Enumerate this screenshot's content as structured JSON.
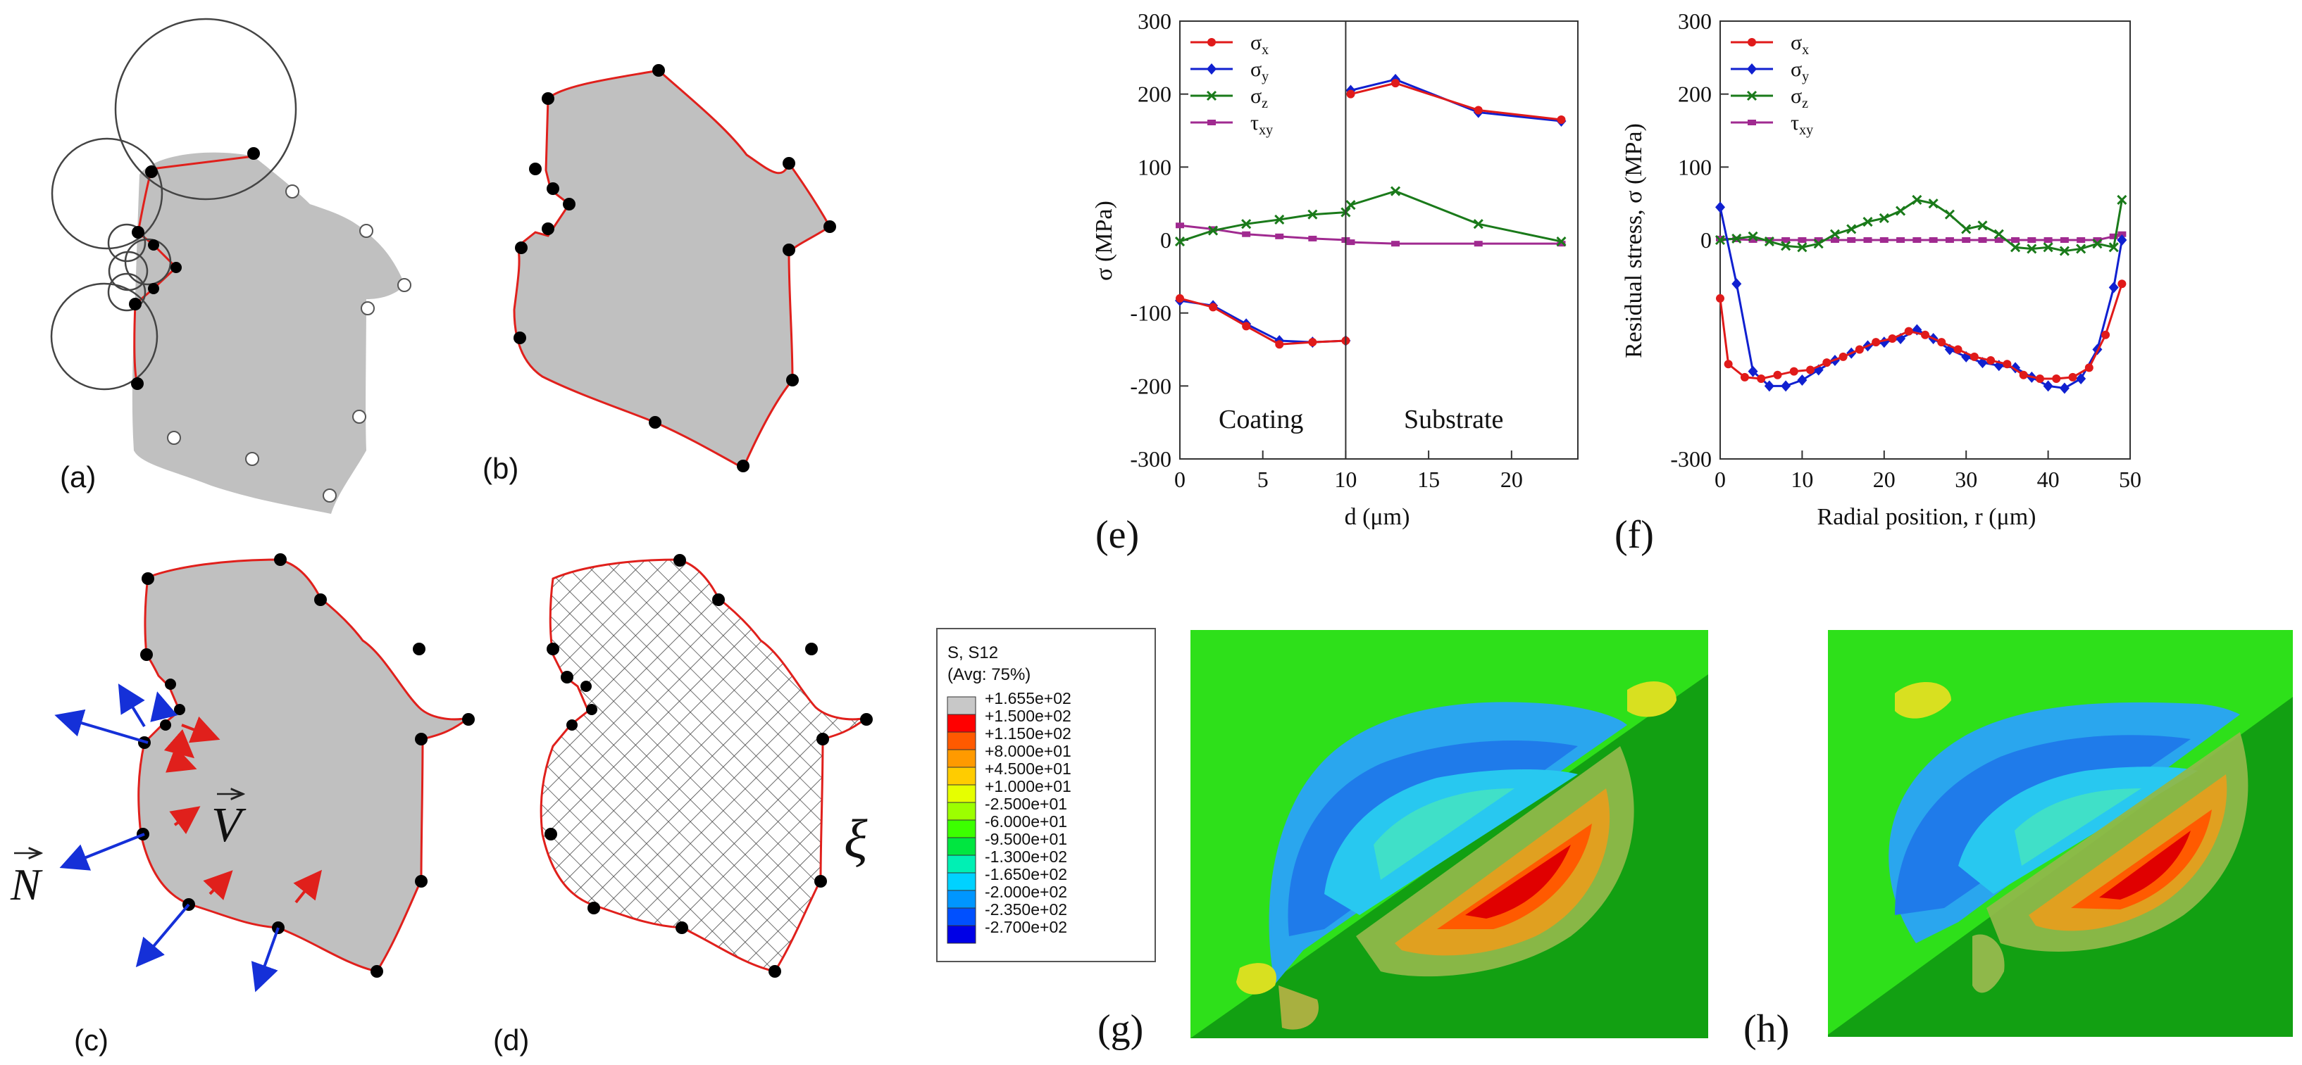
{
  "panels": {
    "a": "(a)",
    "b": "(b)",
    "c": "(c)",
    "d": "(d)",
    "e": "(e)",
    "f": "(f)",
    "g": "(g)",
    "h": "(h)"
  },
  "symbols": {
    "normal": "N",
    "velocity": "V",
    "xi": "ξ"
  },
  "colors": {
    "shape_fill": "#c0c0c0",
    "boundary": "#e0201c",
    "normal_arrow": "#1530d8",
    "velocity_arrow": "#e0201c",
    "sigma_x": "#e01a1a",
    "sigma_y": "#1020d0",
    "sigma_z": "#1a7a1a",
    "tau_xy": "#a02a90"
  },
  "chart_data": [
    {
      "id": "e",
      "type": "line",
      "xlabel": "d (μm)",
      "ylabel": "σ (MPa)",
      "xlim": [
        0,
        24
      ],
      "ylim": [
        -300,
        300
      ],
      "xticks": [
        0,
        5,
        10,
        15,
        20
      ],
      "yticks": [
        300,
        200,
        100,
        0,
        -100,
        -200,
        -300
      ],
      "divider_x": 10,
      "region_labels": [
        "Coating",
        "Substrate"
      ],
      "legend": [
        "σx",
        "σy",
        "σz",
        "τxy"
      ],
      "series": [
        {
          "name": "σx",
          "segments": [
            {
              "x": [
                0,
                2,
                4,
                6,
                8,
                10
              ],
              "y": [
                -80,
                -92,
                -118,
                -143,
                -140,
                -138
              ]
            },
            {
              "x": [
                10.3,
                13,
                18,
                23
              ],
              "y": [
                200,
                215,
                178,
                165
              ]
            }
          ]
        },
        {
          "name": "σy",
          "segments": [
            {
              "x": [
                0,
                2,
                4,
                6,
                8,
                10
              ],
              "y": [
                -83,
                -90,
                -115,
                -138,
                -140,
                -138
              ]
            },
            {
              "x": [
                10.3,
                13,
                18,
                23
              ],
              "y": [
                205,
                220,
                175,
                163
              ]
            }
          ]
        },
        {
          "name": "σz",
          "segments": [
            {
              "x": [
                0,
                2,
                4,
                6,
                8,
                10,
                10.3,
                13,
                18,
                23
              ],
              "y": [
                -2,
                13,
                22,
                28,
                35,
                38,
                48,
                67,
                22,
                -2
              ]
            }
          ]
        },
        {
          "name": "τxy",
          "segments": [
            {
              "x": [
                0,
                2,
                4,
                6,
                8,
                10,
                10.3,
                13,
                18,
                23
              ],
              "y": [
                20,
                15,
                8,
                5,
                2,
                0,
                -3,
                -5,
                -5,
                -5
              ]
            }
          ]
        }
      ]
    },
    {
      "id": "f",
      "type": "line",
      "xlabel": "Radial position, r (μm)",
      "ylabel": "Residual stress, σ (MPa)",
      "xlim": [
        0,
        50
      ],
      "ylim": [
        -300,
        300
      ],
      "xticks": [
        0,
        10,
        20,
        30,
        40,
        50
      ],
      "yticks": [
        300,
        200,
        100,
        0,
        -300
      ],
      "legend": [
        "σx",
        "σy",
        "σz",
        "τxy"
      ],
      "series": [
        {
          "name": "σx",
          "x": [
            0,
            1,
            3,
            5,
            7,
            9,
            11,
            13,
            15,
            17,
            19,
            21,
            23,
            25,
            27,
            29,
            31,
            33,
            35,
            37,
            39,
            41,
            43,
            45,
            47,
            49
          ],
          "y": [
            -80,
            -170,
            -188,
            -190,
            -185,
            -180,
            -178,
            -168,
            -160,
            -150,
            -140,
            -135,
            -125,
            -130,
            -140,
            -150,
            -160,
            -165,
            -170,
            -185,
            -190,
            -190,
            -188,
            -175,
            -130,
            -60
          ]
        },
        {
          "name": "σy",
          "x": [
            0,
            2,
            4,
            6,
            8,
            10,
            12,
            14,
            16,
            18,
            20,
            22,
            24,
            26,
            28,
            30,
            32,
            34,
            36,
            38,
            40,
            42,
            44,
            46,
            48,
            49
          ],
          "y": [
            45,
            -60,
            -180,
            -200,
            -200,
            -192,
            -178,
            -165,
            -155,
            -145,
            -140,
            -135,
            -123,
            -135,
            -150,
            -160,
            -168,
            -172,
            -175,
            -188,
            -200,
            -203,
            -190,
            -150,
            -65,
            0
          ]
        },
        {
          "name": "σz",
          "x": [
            0,
            2,
            4,
            6,
            8,
            10,
            12,
            14,
            16,
            18,
            20,
            22,
            24,
            26,
            28,
            30,
            32,
            34,
            36,
            38,
            40,
            42,
            44,
            46,
            48,
            49
          ],
          "y": [
            0,
            2,
            5,
            -2,
            -8,
            -10,
            -5,
            8,
            15,
            25,
            30,
            40,
            55,
            50,
            35,
            15,
            20,
            8,
            -10,
            -12,
            -10,
            -15,
            -12,
            -5,
            -10,
            55
          ]
        },
        {
          "name": "τxy",
          "x": [
            0,
            2,
            4,
            6,
            8,
            10,
            12,
            14,
            16,
            18,
            20,
            22,
            24,
            26,
            28,
            30,
            32,
            34,
            36,
            38,
            40,
            42,
            44,
            46,
            48,
            49
          ],
          "y": [
            2,
            1,
            0,
            0,
            0,
            0,
            0,
            0,
            0,
            0,
            0,
            0,
            0,
            0,
            0,
            0,
            0,
            0,
            0,
            0,
            0,
            0,
            0,
            0,
            5,
            8
          ]
        }
      ]
    }
  ],
  "contour_legend": {
    "title_lines": [
      "S, S12",
      "(Avg: 75%)"
    ],
    "entries": [
      {
        "label": "+1.655e+02",
        "color": "#c8c8c8"
      },
      {
        "label": "+1.500e+02",
        "color": "#ff0000"
      },
      {
        "label": "+1.150e+02",
        "color": "#ff5a00"
      },
      {
        "label": "+8.000e+01",
        "color": "#ff9a00"
      },
      {
        "label": "+4.500e+01",
        "color": "#ffcc00"
      },
      {
        "label": "+1.000e+01",
        "color": "#e6ff00"
      },
      {
        "label": "-2.500e+01",
        "color": "#9cff00"
      },
      {
        "label": "-6.000e+01",
        "color": "#3cff00"
      },
      {
        "label": "-9.500e+01",
        "color": "#00e640"
      },
      {
        "label": "-1.300e+02",
        "color": "#00f0b4"
      },
      {
        "label": "-1.650e+02",
        "color": "#00d2ff"
      },
      {
        "label": "-2.000e+02",
        "color": "#0096ff"
      },
      {
        "label": "-2.350e+02",
        "color": "#0050ff"
      },
      {
        "label": "-2.700e+02",
        "color": "#0000e6"
      }
    ]
  }
}
